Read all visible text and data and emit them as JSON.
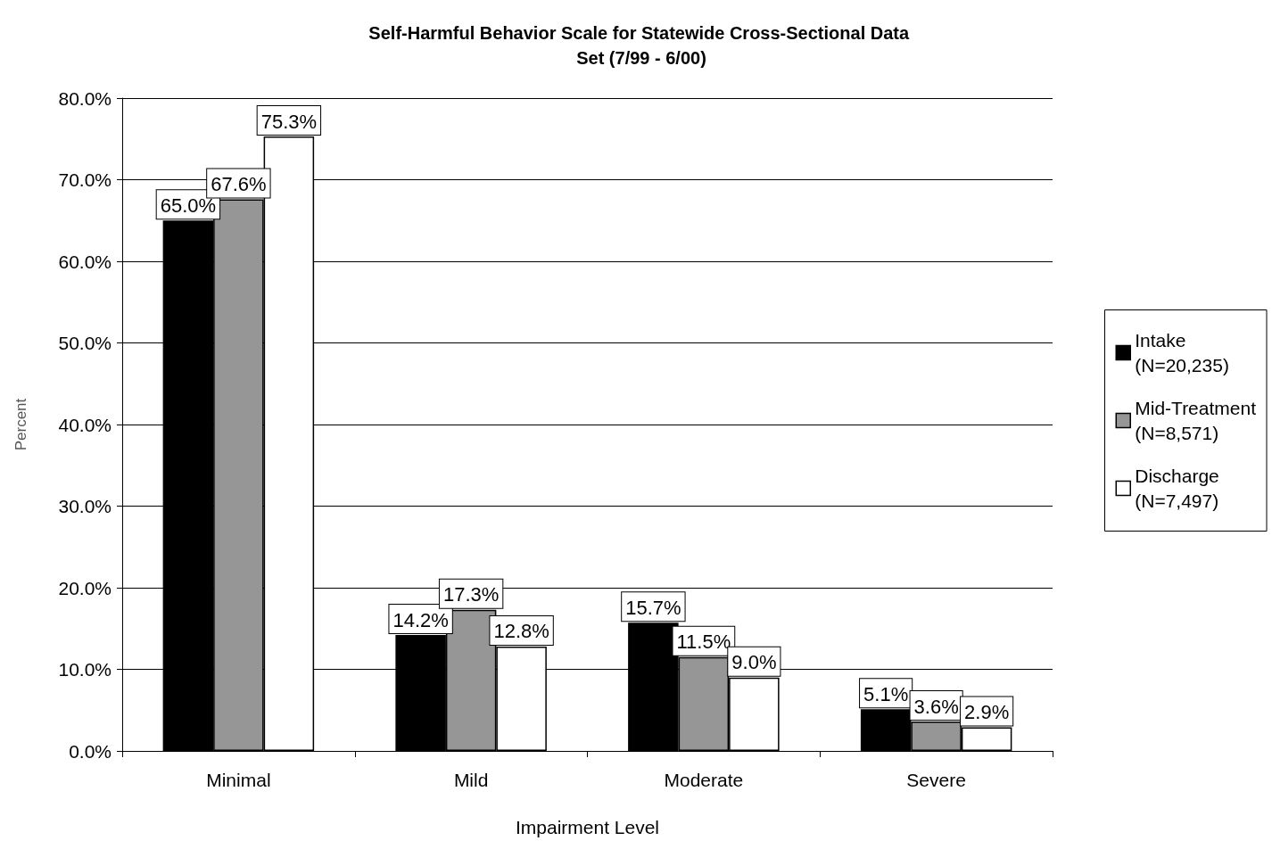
{
  "chart_data": {
    "type": "bar",
    "title": "Self-Harmful Behavior Scale for Statewide Cross-Sectional Data Set (7/99 - 6/00)",
    "xlabel": "Impairment Level",
    "ylabel": "Percent",
    "categories": [
      "Minimal",
      "Mild",
      "Moderate",
      "Severe"
    ],
    "series": [
      {
        "name": "Intake (N=20,235)",
        "color": "#000000",
        "values": [
          65.0,
          14.2,
          15.7,
          5.1
        ],
        "value_labels": [
          "65.0%",
          "14.2%",
          "15.7%",
          "5.1%"
        ]
      },
      {
        "name": "Mid-Treatment (N=8,571)",
        "color": "#969696",
        "values": [
          67.6,
          17.3,
          11.5,
          3.6
        ],
        "value_labels": [
          "67.6%",
          "17.3%",
          "11.5%",
          "3.6%"
        ]
      },
      {
        "name": "Discharge (N=7,497)",
        "color": "#ffffff",
        "values": [
          75.3,
          12.8,
          9.0,
          2.9
        ],
        "value_labels": [
          "75.3%",
          "12.8%",
          "9.0%",
          "2.9%"
        ]
      }
    ],
    "ylim": [
      0,
      80
    ],
    "yticks": [
      {
        "value": 0,
        "label": "0.0%"
      },
      {
        "value": 10,
        "label": "10.0%"
      },
      {
        "value": 20,
        "label": "20.0%"
      },
      {
        "value": 30,
        "label": "30.0%"
      },
      {
        "value": 40,
        "label": "40.0%"
      },
      {
        "value": 50,
        "label": "50.0%"
      },
      {
        "value": 60,
        "label": "60.0%"
      },
      {
        "value": 70,
        "label": "70.0%"
      },
      {
        "value": 80,
        "label": "80.0%"
      }
    ],
    "grid": "y",
    "legend": "right"
  }
}
